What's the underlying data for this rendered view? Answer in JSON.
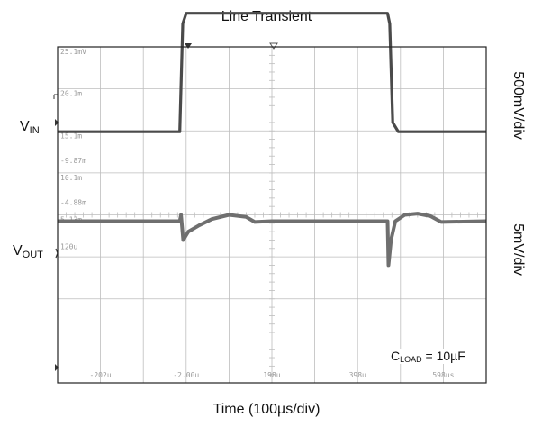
{
  "chart_data": {
    "type": "line",
    "title": "Line Transient",
    "xlabel": "Time (100µs/div)",
    "x_tick_labels": [
      "-202u",
      "-2.00u",
      "198u",
      "398u",
      "598us"
    ],
    "ch1_tick_labels": [
      "25.1mV",
      "20.1m",
      "15.1m",
      "10.1m",
      "5.13m"
    ],
    "ch2_tick_labels": [
      "120u",
      "-4.88m",
      "-9.87m"
    ],
    "grid": true,
    "x_divisions": 10,
    "y_divisions": 8,
    "x_range_div": [
      0,
      10
    ],
    "y_range_div": [
      0,
      8
    ],
    "series": [
      {
        "name": "VIN",
        "scale": "500mV/div",
        "points_div": [
          [
            0,
            2.03
          ],
          [
            2.85,
            2.03
          ],
          [
            2.92,
            4.6
          ],
          [
            3.0,
            4.85
          ],
          [
            7.7,
            4.85
          ],
          [
            7.75,
            4.6
          ],
          [
            7.82,
            2.25
          ],
          [
            7.95,
            2.03
          ],
          [
            10,
            2.03
          ]
        ]
      },
      {
        "name": "VOUT",
        "scale": "5mV/div",
        "points_div": [
          [
            0,
            -0.1
          ],
          [
            2.85,
            -0.1
          ],
          [
            2.88,
            0.05
          ],
          [
            2.93,
            -0.55
          ],
          [
            3.05,
            -0.35
          ],
          [
            3.3,
            -0.2
          ],
          [
            3.6,
            -0.05
          ],
          [
            4.0,
            0.05
          ],
          [
            4.4,
            0.0
          ],
          [
            4.6,
            -0.12
          ],
          [
            5.0,
            -0.1
          ],
          [
            7.7,
            -0.1
          ],
          [
            7.72,
            -1.15
          ],
          [
            7.78,
            -0.55
          ],
          [
            7.88,
            -0.1
          ],
          [
            8.1,
            0.05
          ],
          [
            8.4,
            0.08
          ],
          [
            8.7,
            0.02
          ],
          [
            8.95,
            -0.12
          ],
          [
            10,
            -0.1
          ]
        ]
      }
    ],
    "legend": ""
  },
  "labels": {
    "vin_main": "V",
    "vin_sub": "IN",
    "vout_main": "V",
    "vout_sub": "OUT",
    "vin_scale": "500mV/div",
    "vout_scale": "5mV/div",
    "cload_main": "C",
    "cload_sub": "LOAD",
    "cload_value": " = 10µF"
  },
  "colors": {
    "grid": "#bdbdbd",
    "trace": "#4a4a4a",
    "frame": "#222222",
    "tick_text": "#9a9a9a"
  }
}
